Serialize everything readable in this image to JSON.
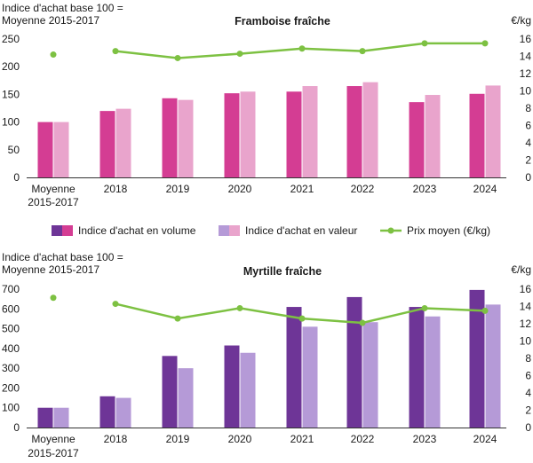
{
  "chart_data": [
    {
      "type": "bar",
      "title": "Framboise fraîche",
      "ylabel": "Indice d'achat base 100 = Moyenne 2015-2017",
      "y2label": "€/kg",
      "categories": [
        "Moyenne 2015-2017",
        "2018",
        "2019",
        "2020",
        "2021",
        "2022",
        "2023",
        "2024"
      ],
      "ylim": [
        0,
        250
      ],
      "yticks": [
        0,
        50,
        100,
        150,
        200,
        250
      ],
      "y2lim": [
        0,
        16
      ],
      "y2ticks": [
        0,
        2,
        4,
        6,
        8,
        10,
        12,
        14,
        16
      ],
      "colors": {
        "volume": "#d43d93",
        "valeur": "#e9a4cc",
        "prix": "#7dc142"
      },
      "series": [
        {
          "name": "Indice d'achat en volume",
          "axis": "left",
          "values": [
            100,
            120,
            143,
            152,
            155,
            165,
            136,
            151
          ]
        },
        {
          "name": "Indice d'achat en valeur",
          "axis": "left",
          "values": [
            100,
            124,
            140,
            155,
            165,
            172,
            149,
            166
          ]
        },
        {
          "name": "Prix moyen (€/kg)",
          "axis": "right",
          "type": "line",
          "values": [
            14.2,
            14.6,
            13.8,
            14.3,
            14.9,
            14.6,
            15.5,
            15.5
          ]
        }
      ]
    },
    {
      "type": "bar",
      "title": "Myrtille fraîche",
      "ylabel": "Indice d'achat base 100 = Moyenne 2015-2017",
      "y2label": "€/kg",
      "categories": [
        "Moyenne 2015-2017",
        "2018",
        "2019",
        "2020",
        "2021",
        "2022",
        "2023",
        "2024"
      ],
      "ylim": [
        0,
        700
      ],
      "yticks": [
        0,
        100,
        200,
        300,
        400,
        500,
        600,
        700
      ],
      "y2lim": [
        0,
        16
      ],
      "y2ticks": [
        0,
        2,
        4,
        6,
        8,
        10,
        12,
        14,
        16
      ],
      "colors": {
        "volume": "#6e3597",
        "valeur": "#b59ad7",
        "prix": "#7dc142"
      },
      "series": [
        {
          "name": "Indice d'achat en volume",
          "axis": "left",
          "values": [
            100,
            158,
            362,
            415,
            610,
            660,
            610,
            696
          ]
        },
        {
          "name": "Indice d'achat en valeur",
          "axis": "left",
          "values": [
            100,
            150,
            300,
            378,
            510,
            533,
            562,
            622
          ]
        },
        {
          "name": "Prix moyen (€/kg)",
          "axis": "right",
          "type": "line",
          "values": [
            15.0,
            14.3,
            12.6,
            13.8,
            12.6,
            12.1,
            13.8,
            13.5
          ]
        }
      ]
    }
  ],
  "legend": {
    "volume_label": "Indice d'achat en volume",
    "valeur_label": "Indice d'achat en valeur",
    "prix_label": "Prix moyen (€/kg)"
  }
}
